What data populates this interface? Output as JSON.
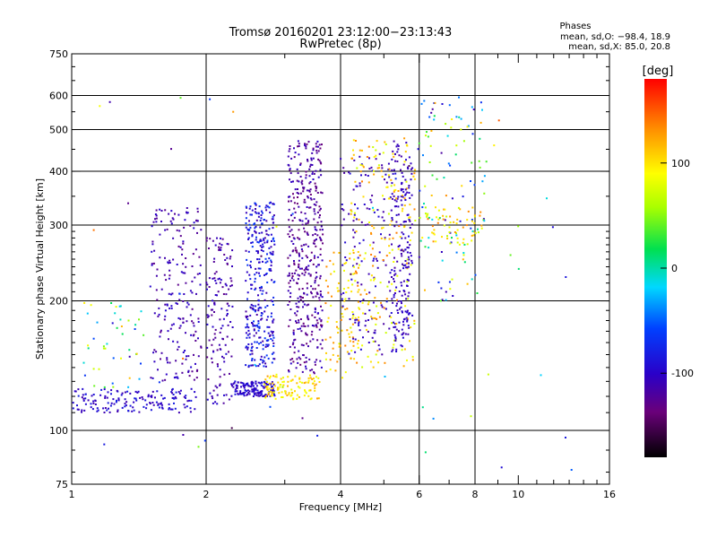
{
  "chart_data": {
    "type": "scatter",
    "title": "Tromsø 20160201 23:12:00−23:13:43",
    "subtitle": "RwPretec (8p)",
    "xlabel": "Frequency [MHz]",
    "ylabel": "Stationary phase Virtual Height [km]",
    "x_scale": "log",
    "y_scale": "log",
    "xlim": [
      1,
      16
    ],
    "ylim": [
      75,
      750
    ],
    "x_ticks": [
      1,
      2,
      4,
      6,
      8,
      10,
      16
    ],
    "x_tick_labels": [
      "1",
      "2",
      "4",
      "6",
      "8",
      "10",
      "16"
    ],
    "x_gridlines": [
      2,
      4,
      6,
      8
    ],
    "y_ticks": [
      75,
      100,
      200,
      300,
      400,
      500,
      600,
      750
    ],
    "y_tick_labels": [
      "75",
      "100",
      "200",
      "300",
      "400",
      "500",
      "600",
      "750"
    ],
    "y_gridlines": [
      100,
      200,
      300,
      400,
      500,
      600
    ],
    "grid": true,
    "stats": {
      "header": "Phases",
      "line_o": "mean, sd,O: −98.4, 18.9",
      "line_x": "mean, sd,X:  85.0, 20.8"
    },
    "colorbar": {
      "label": "[deg]",
      "min": -180,
      "max": 180,
      "ticks": [
        100,
        0,
        -100
      ],
      "tick_labels": [
        "100",
        "0",
        "-100"
      ],
      "colormap": "rainbow (black → violet → blue → cyan → green → yellow → orange → red)"
    },
    "clusters": [
      {
        "f": [
          1.0,
          1.9
        ],
        "h": [
          110,
          125
        ],
        "phase": [
          -115,
          -80
        ],
        "n": 160
      },
      {
        "f": [
          1.05,
          1.45
        ],
        "h": [
          120,
          200
        ],
        "phase": [
          -110,
          120
        ],
        "n": 45
      },
      {
        "f": [
          1.5,
          1.95
        ],
        "h": [
          130,
          330
        ],
        "phase": [
          -130,
          -95
        ],
        "n": 200
      },
      {
        "f": [
          2.0,
          2.3
        ],
        "h": [
          115,
          280
        ],
        "phase": [
          -130,
          -95
        ],
        "n": 140
      },
      {
        "f": [
          2.3,
          2.85
        ],
        "h": [
          120,
          130
        ],
        "phase": [
          -110,
          -85
        ],
        "n": 140
      },
      {
        "f": [
          2.45,
          2.85
        ],
        "h": [
          140,
          340
        ],
        "phase": [
          -120,
          -60
        ],
        "n": 320
      },
      {
        "f": [
          2.7,
          3.6
        ],
        "h": [
          118,
          135
        ],
        "phase": [
          80,
          130
        ],
        "n": 110
      },
      {
        "f": [
          3.05,
          3.65
        ],
        "h": [
          135,
          470
        ],
        "phase": [
          -140,
          -100
        ],
        "n": 420
      },
      {
        "f": [
          3.7,
          4.4
        ],
        "h": [
          135,
          260
        ],
        "phase": [
          80,
          140
        ],
        "n": 90
      },
      {
        "f": [
          4.0,
          5.7
        ],
        "h": [
          150,
          440
        ],
        "phase": [
          -120,
          -90
        ],
        "n": 190
      },
      {
        "f": [
          4.2,
          5.9
        ],
        "h": [
          140,
          480
        ],
        "phase": [
          70,
          140
        ],
        "n": 200
      },
      {
        "f": [
          5.2,
          5.8
        ],
        "h": [
          160,
          470
        ],
        "phase": [
          -115,
          -95
        ],
        "n": 150
      },
      {
        "f": [
          6.0,
          8.5
        ],
        "h": [
          200,
          600
        ],
        "phase": [
          -120,
          140
        ],
        "n": 110
      },
      {
        "f": [
          6.2,
          8.3
        ],
        "h": [
          270,
          330
        ],
        "phase": [
          60,
          140
        ],
        "n": 60
      },
      {
        "f": [
          1.1,
          14
        ],
        "h": [
          80,
          650
        ],
        "phase": [
          -160,
          160
        ],
        "n": 60
      }
    ]
  }
}
